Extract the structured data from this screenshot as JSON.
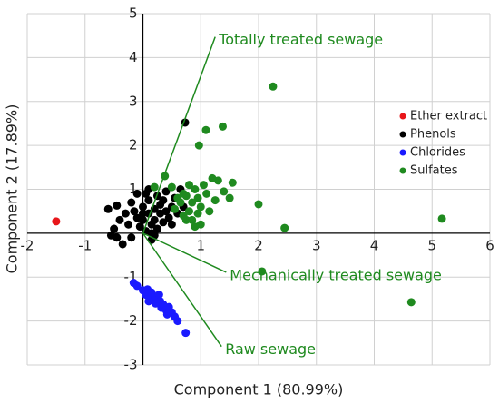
{
  "chart_data": {
    "type": "scatter",
    "x_label": "Component 1 (80.99%)",
    "y_label": "Component 2 (17.89%)",
    "xlim": [
      -2,
      6
    ],
    "ylim": [
      -3,
      5
    ],
    "xticks": [
      -2,
      -1,
      1,
      2,
      3,
      4,
      5,
      6
    ],
    "yticks": [
      -3,
      -2,
      -1,
      1,
      2,
      3,
      4,
      5
    ],
    "grid": true,
    "legend": "right",
    "series": [
      {
        "name": "Ether extract",
        "color": "#e8161a",
        "x": [
          -1.5
        ],
        "y": [
          0.27
        ]
      },
      {
        "name": "Phenols",
        "color": "#000000",
        "x": [
          -0.45,
          -0.4,
          -0.5,
          -0.45,
          -0.35,
          -0.3,
          -0.25,
          -0.2,
          -0.15,
          -0.1,
          -0.05,
          0.0,
          0.0,
          0.05,
          0.05,
          0.1,
          0.1,
          0.15,
          0.2,
          0.2,
          0.25,
          0.25,
          0.3,
          0.3,
          0.35,
          0.35,
          0.4,
          0.4,
          0.45,
          0.5,
          0.5,
          0.55,
          0.6,
          0.65,
          0.7,
          0.73,
          -0.6,
          -0.55,
          -0.2,
          0.15,
          0.1,
          0.15,
          -0.1,
          0.2,
          0.0
        ],
        "y": [
          0.63,
          0.3,
          0.1,
          -0.1,
          -0.25,
          0.45,
          0.2,
          0.7,
          0.5,
          0.35,
          0.15,
          0.6,
          0.3,
          0.9,
          0.05,
          0.45,
          0.75,
          0.2,
          0.55,
          0.3,
          0.85,
          0.1,
          0.45,
          0.65,
          0.25,
          0.75,
          0.5,
          0.95,
          0.35,
          0.6,
          0.2,
          0.8,
          0.45,
          1.0,
          0.6,
          2.52,
          0.55,
          -0.05,
          -0.1,
          -0.15,
          1.0,
          0.0,
          0.9,
          -0.05,
          0.45
        ]
      },
      {
        "name": "Chlorides",
        "color": "#1a1aff",
        "x": [
          -0.16,
          -0.1,
          0.0,
          0.05,
          0.08,
          0.12,
          0.15,
          0.2,
          0.22,
          0.25,
          0.3,
          0.32,
          0.35,
          0.4,
          0.45,
          0.5,
          0.55,
          0.6,
          0.74,
          0.1,
          0.28,
          0.42
        ],
        "y": [
          -1.13,
          -1.2,
          -1.3,
          -1.4,
          -1.28,
          -1.45,
          -1.35,
          -1.5,
          -1.6,
          -1.45,
          -1.55,
          -1.7,
          -1.62,
          -1.75,
          -1.68,
          -1.8,
          -1.9,
          -2.0,
          -2.27,
          -1.55,
          -1.4,
          -1.85
        ]
      },
      {
        "name": "Sulfates",
        "color": "#1f8a1f",
        "x": [
          2.25,
          5.17,
          4.64,
          2.06,
          2.0,
          2.45,
          1.38,
          1.09,
          0.97,
          0.38,
          1.55,
          1.4,
          1.3,
          1.2,
          1.25,
          1.1,
          1.05,
          1.0,
          0.95,
          0.9,
          0.85,
          0.8,
          0.75,
          0.7,
          0.65,
          0.6,
          0.55,
          0.5,
          0.85,
          0.9,
          1.0,
          0.75,
          0.95,
          0.7,
          0.2,
          1.15,
          1.5,
          0.8
        ],
        "y": [
          3.34,
          0.33,
          -1.57,
          -0.87,
          0.66,
          0.12,
          2.43,
          2.35,
          2.0,
          1.3,
          1.15,
          0.95,
          1.2,
          1.25,
          0.75,
          0.9,
          1.1,
          0.6,
          0.8,
          1.0,
          0.7,
          0.5,
          0.85,
          0.9,
          0.7,
          0.8,
          0.55,
          1.05,
          0.3,
          0.15,
          0.2,
          0.3,
          0.45,
          0.4,
          1.05,
          0.5,
          0.8,
          1.1
        ]
      }
    ],
    "loadings": {
      "color": "#1f8a1f",
      "items": [
        {
          "name": "Totally treated sewage",
          "x": 1.25,
          "y": 4.47
        },
        {
          "name": "Mechanically treated sewage",
          "x": 1.44,
          "y": -0.89
        },
        {
          "name": "Raw sewage",
          "x": 1.36,
          "y": -2.58
        }
      ]
    }
  }
}
